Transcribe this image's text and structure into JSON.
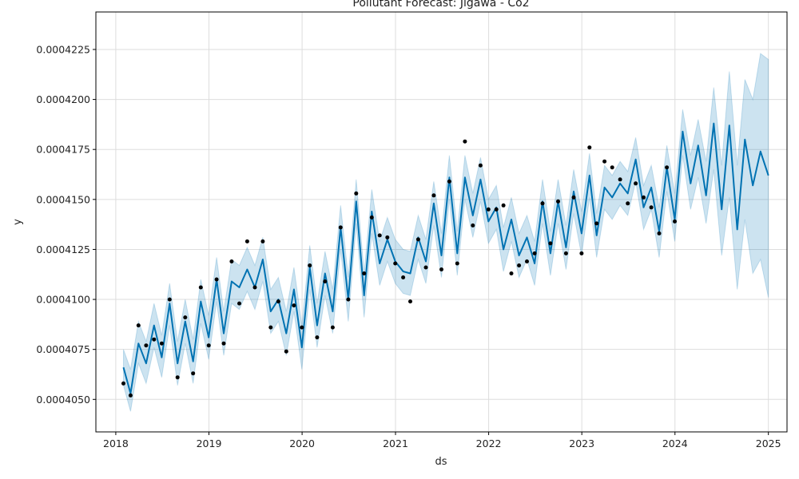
{
  "chart_data": {
    "type": "line",
    "title": "Pollutant Forecast: Jigawa - Co2",
    "xlabel": "ds",
    "ylabel": "y",
    "x_axis_type": "date",
    "xlim": [
      "2017-10-15",
      "2025-03-15"
    ],
    "ylim": [
      0.000403375,
      0.000424375
    ],
    "x_ticks": [
      "2018-01-01",
      "2019-01-01",
      "2020-01-01",
      "2021-01-01",
      "2022-01-01",
      "2023-01-01",
      "2024-01-01",
      "2025-01-01"
    ],
    "x_tick_labels": [
      "2018",
      "2019",
      "2020",
      "2021",
      "2022",
      "2023",
      "2024",
      "2025"
    ],
    "y_ticks": [
      0.000405,
      0.0004075,
      0.00041,
      0.0004125,
      0.000415,
      0.0004175,
      0.00042,
      0.0004225
    ],
    "y_tick_labels": [
      "0.0004050",
      "0.0004075",
      "0.0004100",
      "0.0004125",
      "0.0004150",
      "0.0004175",
      "0.0004200",
      "0.0004225"
    ],
    "grid": true,
    "colors": {
      "forecast": "#0072B2",
      "interval": "#0072B2",
      "observed": "#000000",
      "grid": "#dddddd"
    },
    "series": [
      {
        "kind": "forecast",
        "x": [
          "2018-01-31",
          "2018-02-28",
          "2018-03-31",
          "2018-04-30",
          "2018-05-31",
          "2018-06-30",
          "2018-07-31",
          "2018-08-31",
          "2018-09-30",
          "2018-10-31",
          "2018-11-30",
          "2018-12-31",
          "2019-01-31",
          "2019-02-28",
          "2019-03-31",
          "2019-04-30",
          "2019-05-31",
          "2019-06-30",
          "2019-07-31",
          "2019-08-31",
          "2019-09-30",
          "2019-10-31",
          "2019-11-30",
          "2019-12-31",
          "2020-01-31",
          "2020-02-29",
          "2020-03-31",
          "2020-04-30",
          "2020-05-31",
          "2020-06-30",
          "2020-07-31",
          "2020-08-31",
          "2020-09-30",
          "2020-10-31",
          "2020-11-30",
          "2020-12-31",
          "2021-01-31",
          "2021-02-28",
          "2021-03-31",
          "2021-04-30",
          "2021-05-31",
          "2021-06-30",
          "2021-07-31",
          "2021-08-31",
          "2021-09-30",
          "2021-10-31",
          "2021-11-30",
          "2021-12-31",
          "2022-01-31",
          "2022-02-28",
          "2022-03-31",
          "2022-04-30",
          "2022-05-31",
          "2022-06-30",
          "2022-07-31",
          "2022-08-31",
          "2022-09-30",
          "2022-10-31",
          "2022-11-30",
          "2022-12-31",
          "2023-01-31",
          "2023-02-28",
          "2023-03-31",
          "2023-04-30",
          "2023-05-31",
          "2023-06-30",
          "2023-07-31",
          "2023-08-31",
          "2023-09-30",
          "2023-10-31",
          "2023-11-30",
          "2023-12-31",
          "2024-01-31",
          "2024-03-02",
          "2024-04-01",
          "2024-05-02",
          "2024-06-01",
          "2024-07-02",
          "2024-08-01",
          "2024-09-01",
          "2024-10-01",
          "2024-11-01",
          "2024-12-01",
          "2025-01-01"
        ],
        "y": [
          0.0004066,
          0.0004053,
          0.0004078,
          0.0004068,
          0.0004087,
          0.0004071,
          0.0004098,
          0.0004068,
          0.0004089,
          0.0004069,
          0.0004099,
          0.0004081,
          0.000411,
          0.0004083,
          0.0004109,
          0.0004106,
          0.0004115,
          0.0004106,
          0.000412,
          0.0004094,
          0.00041,
          0.0004083,
          0.0004105,
          0.0004076,
          0.0004116,
          0.0004087,
          0.0004113,
          0.0004094,
          0.0004136,
          0.00041,
          0.0004149,
          0.0004102,
          0.0004144,
          0.0004118,
          0.000413,
          0.0004119,
          0.0004114,
          0.0004113,
          0.0004131,
          0.0004119,
          0.0004148,
          0.0004122,
          0.0004161,
          0.0004123,
          0.0004161,
          0.0004142,
          0.000416,
          0.0004139,
          0.0004146,
          0.0004125,
          0.000414,
          0.0004122,
          0.0004131,
          0.0004118,
          0.0004149,
          0.0004123,
          0.0004149,
          0.0004126,
          0.0004154,
          0.0004133,
          0.0004162,
          0.0004132,
          0.0004156,
          0.0004151,
          0.0004158,
          0.0004153,
          0.000417,
          0.0004146,
          0.0004156,
          0.0004134,
          0.0004166,
          0.000414,
          0.0004184,
          0.0004158,
          0.0004177,
          0.0004152,
          0.0004188,
          0.0004145,
          0.0004187,
          0.0004135,
          0.000418,
          0.0004157,
          0.0004174,
          0.0004162
        ]
      },
      {
        "kind": "interval",
        "upper": [
          0.0004075,
          0.0004065,
          0.0004089,
          0.0004079,
          0.0004098,
          0.0004082,
          0.0004108,
          0.0004079,
          0.00041,
          0.000408,
          0.000411,
          0.0004092,
          0.0004121,
          0.0004094,
          0.000412,
          0.0004117,
          0.0004126,
          0.0004117,
          0.0004131,
          0.0004105,
          0.0004111,
          0.0004094,
          0.0004116,
          0.0004087,
          0.0004127,
          0.0004098,
          0.0004124,
          0.0004105,
          0.0004147,
          0.0004111,
          0.000416,
          0.0004113,
          0.0004155,
          0.0004129,
          0.0004141,
          0.000413,
          0.0004125,
          0.0004124,
          0.0004142,
          0.000413,
          0.0004159,
          0.0004133,
          0.0004172,
          0.0004134,
          0.0004172,
          0.0004153,
          0.0004171,
          0.000415,
          0.0004157,
          0.0004136,
          0.0004151,
          0.0004133,
          0.0004142,
          0.0004129,
          0.000416,
          0.0004134,
          0.000416,
          0.0004137,
          0.0004165,
          0.0004144,
          0.0004173,
          0.0004143,
          0.0004167,
          0.0004162,
          0.0004169,
          0.0004164,
          0.0004181,
          0.0004157,
          0.0004167,
          0.0004146,
          0.0004177,
          0.0004153,
          0.0004195,
          0.0004172,
          0.000419,
          0.0004169,
          0.0004206,
          0.0004167,
          0.0004214,
          0.0004167,
          0.000421,
          0.00042,
          0.0004223,
          0.000422
        ],
        "lower": [
          0.0004057,
          0.0004044,
          0.0004068,
          0.0004058,
          0.0004076,
          0.0004061,
          0.0004087,
          0.0004057,
          0.0004078,
          0.0004058,
          0.0004088,
          0.000407,
          0.0004099,
          0.0004072,
          0.0004098,
          0.0004095,
          0.0004104,
          0.0004095,
          0.0004109,
          0.0004083,
          0.0004089,
          0.0004072,
          0.0004094,
          0.0004065,
          0.0004105,
          0.0004076,
          0.0004102,
          0.0004083,
          0.0004125,
          0.0004089,
          0.0004138,
          0.0004091,
          0.0004133,
          0.0004107,
          0.0004119,
          0.0004108,
          0.0004103,
          0.0004102,
          0.000412,
          0.0004108,
          0.0004137,
          0.0004111,
          0.000415,
          0.0004112,
          0.000415,
          0.0004131,
          0.0004149,
          0.0004128,
          0.0004135,
          0.0004114,
          0.0004129,
          0.0004111,
          0.000412,
          0.0004107,
          0.0004138,
          0.0004112,
          0.0004138,
          0.0004115,
          0.0004143,
          0.0004122,
          0.0004151,
          0.0004121,
          0.0004145,
          0.000414,
          0.0004147,
          0.0004142,
          0.0004159,
          0.0004135,
          0.0004145,
          0.0004121,
          0.0004154,
          0.0004129,
          0.0004172,
          0.0004145,
          0.0004161,
          0.0004138,
          0.0004165,
          0.0004122,
          0.0004151,
          0.0004105,
          0.000414,
          0.0004113,
          0.000412,
          0.0004101
        ]
      },
      {
        "kind": "observed",
        "x": [
          "2018-01-31",
          "2018-02-28",
          "2018-03-31",
          "2018-04-30",
          "2018-05-31",
          "2018-06-30",
          "2018-07-31",
          "2018-08-31",
          "2018-09-30",
          "2018-10-31",
          "2018-11-30",
          "2018-12-31",
          "2019-01-31",
          "2019-02-28",
          "2019-03-31",
          "2019-04-30",
          "2019-05-31",
          "2019-06-30",
          "2019-07-31",
          "2019-08-31",
          "2019-09-30",
          "2019-10-31",
          "2019-11-30",
          "2019-12-31",
          "2020-01-31",
          "2020-02-29",
          "2020-03-31",
          "2020-04-30",
          "2020-05-31",
          "2020-06-30",
          "2020-07-31",
          "2020-08-31",
          "2020-09-30",
          "2020-10-31",
          "2020-11-30",
          "2020-12-31",
          "2021-01-31",
          "2021-02-28",
          "2021-03-31",
          "2021-04-30",
          "2021-05-31",
          "2021-06-30",
          "2021-07-31",
          "2021-08-31",
          "2021-09-30",
          "2021-10-31",
          "2021-11-30",
          "2021-12-31",
          "2022-01-31",
          "2022-02-28",
          "2022-03-31",
          "2022-04-30",
          "2022-05-31",
          "2022-06-30",
          "2022-07-31",
          "2022-08-31",
          "2022-09-30",
          "2022-10-31",
          "2022-11-30",
          "2022-12-31",
          "2023-01-31",
          "2023-02-28",
          "2023-03-31",
          "2023-04-30",
          "2023-05-31",
          "2023-06-30",
          "2023-07-31",
          "2023-08-31",
          "2023-09-30",
          "2023-10-31",
          "2023-11-30",
          "2023-12-31"
        ],
        "y": [
          0.0004058,
          0.0004052,
          0.0004087,
          0.0004077,
          0.000408,
          0.0004078,
          0.00041,
          0.0004061,
          0.0004091,
          0.0004063,
          0.0004106,
          0.0004077,
          0.000411,
          0.0004078,
          0.0004119,
          0.0004098,
          0.0004129,
          0.0004106,
          0.0004129,
          0.0004086,
          0.0004099,
          0.0004074,
          0.0004097,
          0.0004086,
          0.0004117,
          0.0004081,
          0.0004109,
          0.0004086,
          0.0004136,
          0.00041,
          0.0004153,
          0.0004113,
          0.0004141,
          0.0004132,
          0.0004131,
          0.0004118,
          0.0004111,
          0.0004099,
          0.000413,
          0.0004116,
          0.0004152,
          0.0004115,
          0.0004159,
          0.0004118,
          0.0004179,
          0.0004137,
          0.0004167,
          0.0004145,
          0.0004145,
          0.0004147,
          0.0004113,
          0.0004117,
          0.0004119,
          0.0004123,
          0.0004148,
          0.0004128,
          0.0004149,
          0.0004123,
          0.0004151,
          0.0004123,
          0.0004176,
          0.0004138,
          0.0004169,
          0.0004166,
          0.000416,
          0.0004148,
          0.0004158,
          0.0004151,
          0.0004146,
          0.0004133,
          0.0004166,
          0.0004139
        ]
      }
    ]
  }
}
